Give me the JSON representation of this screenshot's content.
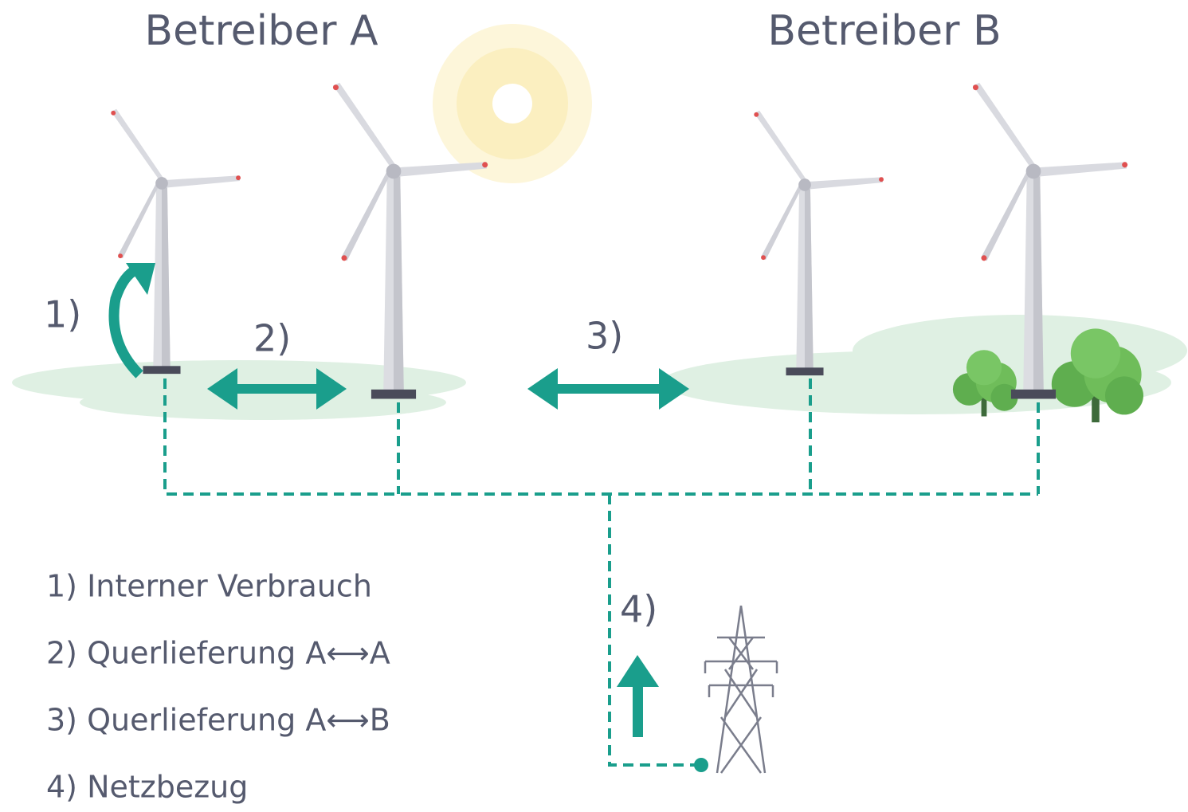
{
  "header": {
    "operator_a": "Betreiber A",
    "operator_b": "Betreiber B"
  },
  "markers": [
    "1)",
    "2)",
    "3)",
    "4)"
  ],
  "legend": [
    "1) Interner Verbrauch",
    "2) Querlieferung A⟷A",
    "3) Querlieferung A⟷B",
    "4) Netzbezug"
  ]
}
